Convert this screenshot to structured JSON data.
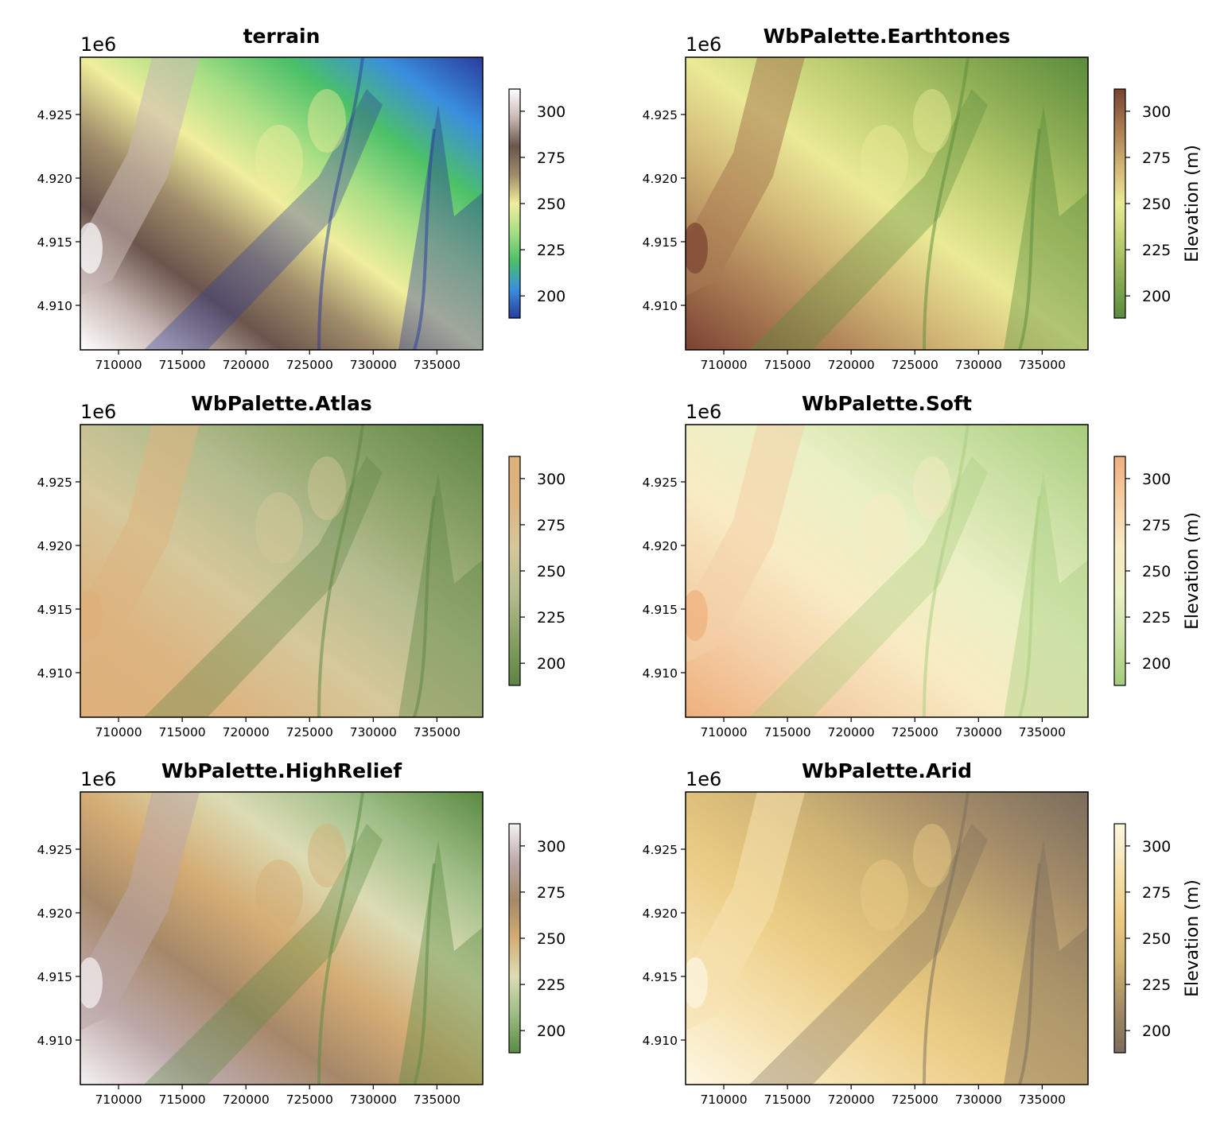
{
  "figure": {
    "panels": [
      {
        "id": "terrain",
        "title": "terrain",
        "palette": "terrain",
        "colorbar_label": ""
      },
      {
        "id": "earthtones",
        "title": "WbPalette.Earthtones",
        "palette": "earthtones",
        "colorbar_label": "Elevation (m)"
      },
      {
        "id": "atlas",
        "title": "WbPalette.Atlas",
        "palette": "atlas",
        "colorbar_label": ""
      },
      {
        "id": "soft",
        "title": "WbPalette.Soft",
        "palette": "soft",
        "colorbar_label": "Elevation (m)"
      },
      {
        "id": "highrelief",
        "title": "WbPalette.HighRelief",
        "palette": "highrelief",
        "colorbar_label": ""
      },
      {
        "id": "arid",
        "title": "WbPalette.Arid",
        "palette": "arid",
        "colorbar_label": "Elevation (m)"
      }
    ]
  },
  "chart_data": {
    "type": "heatmap",
    "description_kind": "elevation raster (DEM) rendered with six colour palettes",
    "x_ticks": [
      "710000",
      "715000",
      "720000",
      "725000",
      "730000",
      "735000"
    ],
    "x_tick_values": [
      710000,
      715000,
      720000,
      725000,
      730000,
      735000
    ],
    "xlim": [
      707000,
      738600
    ],
    "y_ticks": [
      "4.925",
      "4.920",
      "4.915",
      "4.910"
    ],
    "y_tick_values": [
      4.925,
      4.92,
      4.915,
      4.91
    ],
    "y_offset_label": "1e6",
    "ylim": [
      4.9065,
      4.9295
    ],
    "colorbar_ticks": [
      "300",
      "275",
      "250",
      "225",
      "200"
    ],
    "colorbar_tick_values": [
      300,
      275,
      250,
      225,
      200
    ],
    "colorbar_range": [
      188,
      312
    ],
    "palettes": {
      "terrain": [
        "#2a3c9c",
        "#3a8ede",
        "#4cc068",
        "#a7de84",
        "#f0ee9c",
        "#a08c6a",
        "#6b544c",
        "#c8b8b4",
        "#ffffff"
      ],
      "earthtones": [
        "#5a8c3c",
        "#8aab52",
        "#bccd70",
        "#eaea96",
        "#d0b474",
        "#a87a52",
        "#7a4232"
      ],
      "atlas": [
        "#5c8444",
        "#87a064",
        "#b4bc8e",
        "#d6c89a",
        "#dcb480",
        "#e0b07a"
      ],
      "soft": [
        "#a6cc7c",
        "#cbe0a4",
        "#eaf0c4",
        "#f8ecc4",
        "#f4d0a8",
        "#eeb07c"
      ],
      "highrelief": [
        "#5a8a42",
        "#9cbc84",
        "#dcdcb4",
        "#d4ac74",
        "#a68868",
        "#bca8a8",
        "#f6f2f2"
      ],
      "arid": [
        "#7a6c5c",
        "#a48c68",
        "#d0b474",
        "#eccc84",
        "#f6e2b0",
        "#fdf7e2"
      ]
    }
  }
}
